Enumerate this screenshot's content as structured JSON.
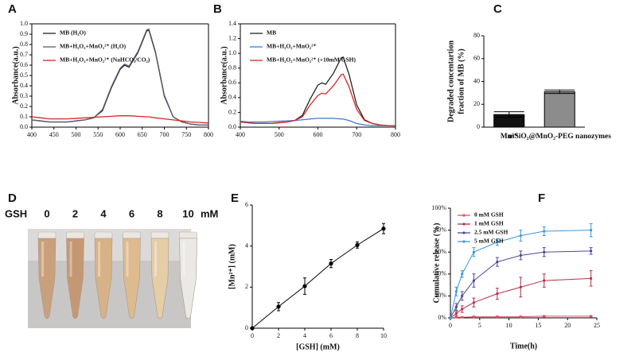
{
  "chart_data": [
    {
      "type": "line",
      "panel": "A",
      "box": true,
      "ylabel": "Absorbance(a.u.)",
      "xlim": [
        400,
        800
      ],
      "xticks": [
        400,
        450,
        500,
        550,
        600,
        650,
        700,
        750,
        800
      ],
      "ylim": [
        0,
        1.0
      ],
      "yticks": [
        {
          "value": 0,
          "label": "0.0"
        },
        0.1,
        0.2,
        0.3,
        0.4,
        0.5,
        0.6,
        0.7,
        0.8,
        0.9,
        {
          "value": 1.0,
          "label": "1.0"
        }
      ],
      "legend": "upper left",
      "x": [
        400,
        420,
        440,
        460,
        480,
        500,
        520,
        540,
        560,
        580,
        600,
        610,
        620,
        640,
        660,
        665,
        680,
        700,
        720,
        740,
        760,
        780,
        800
      ],
      "series": [
        {
          "name": "MB (H₂O)",
          "color": "#222222",
          "values": [
            0.07,
            0.06,
            0.05,
            0.05,
            0.05,
            0.06,
            0.07,
            0.09,
            0.16,
            0.38,
            0.56,
            0.6,
            0.58,
            0.72,
            0.93,
            0.94,
            0.72,
            0.3,
            0.1,
            0.05,
            0.03,
            0.02,
            0.02
          ]
        },
        {
          "name": "MB+H₂O₂+MnO₂²⁺ (H₂O)",
          "color": "#5e5a72",
          "values": [
            0.07,
            0.06,
            0.05,
            0.05,
            0.05,
            0.06,
            0.07,
            0.09,
            0.17,
            0.39,
            0.57,
            0.61,
            0.59,
            0.73,
            0.94,
            0.95,
            0.73,
            0.31,
            0.1,
            0.05,
            0.03,
            0.02,
            0.02
          ]
        },
        {
          "name": "MB+H₂O₂+MnO₂²⁺ (NaHCO₃/CO₂)",
          "color": "#d62728",
          "values": [
            0.1,
            0.09,
            0.08,
            0.08,
            0.08,
            0.085,
            0.09,
            0.095,
            0.1,
            0.105,
            0.11,
            0.11,
            0.11,
            0.105,
            0.1,
            0.1,
            0.09,
            0.08,
            0.07,
            0.06,
            0.05,
            0.045,
            0.04
          ]
        }
      ]
    },
    {
      "type": "line",
      "panel": "B",
      "box": true,
      "ylabel": "Absorbance(a.u.)",
      "xlim": [
        400,
        800
      ],
      "xticks": [
        400,
        500,
        600,
        700,
        800
      ],
      "ylim": [
        0,
        1.4
      ],
      "yticks": [
        {
          "value": 0,
          "label": "0.0"
        },
        0.2,
        0.4,
        0.6,
        0.8,
        {
          "value": 1.0,
          "label": "1.0"
        },
        1.2,
        1.4
      ],
      "legend": "upper left",
      "x": [
        400,
        420,
        440,
        460,
        480,
        500,
        520,
        540,
        560,
        580,
        600,
        610,
        620,
        640,
        660,
        665,
        680,
        700,
        720,
        740,
        760,
        780,
        800
      ],
      "series": [
        {
          "name": "MB",
          "color": "#222222",
          "values": [
            0.07,
            0.06,
            0.05,
            0.05,
            0.05,
            0.06,
            0.07,
            0.09,
            0.16,
            0.38,
            0.57,
            0.6,
            0.58,
            0.73,
            0.94,
            0.95,
            0.72,
            0.3,
            0.1,
            0.05,
            0.03,
            0.02,
            0.02
          ]
        },
        {
          "name": "MB+H₂O₂+MnO₂²⁺",
          "color": "#3a7bd5",
          "values": [
            0.08,
            0.07,
            0.07,
            0.07,
            0.075,
            0.08,
            0.085,
            0.09,
            0.1,
            0.11,
            0.12,
            0.12,
            0.12,
            0.12,
            0.11,
            0.11,
            0.09,
            0.05,
            0.03,
            0.02,
            0.02,
            0.02,
            0.02
          ]
        },
        {
          "name": "MB+H₂O₂+MnO₂²⁺ (+10mM GSH)",
          "color": "#d62728",
          "values": [
            0.07,
            0.06,
            0.05,
            0.05,
            0.05,
            0.06,
            0.07,
            0.09,
            0.14,
            0.3,
            0.43,
            0.46,
            0.45,
            0.56,
            0.71,
            0.72,
            0.55,
            0.24,
            0.09,
            0.05,
            0.03,
            0.02,
            0.02
          ]
        }
      ]
    },
    {
      "type": "bar",
      "panel": "C",
      "box": false,
      "ylabel": [
        "Degraded concentartion",
        "fraction of MB (%)"
      ],
      "categories": [
        "Mn²⁺",
        "mSiO₂@MnO₂-PEG nanozymes"
      ],
      "values": [
        11,
        31
      ],
      "errors": [
        2.5,
        1.5
      ],
      "colors": [
        "#111111",
        "#8c8c8c"
      ],
      "ylim": [
        0,
        80
      ],
      "yticks": [
        0,
        20,
        40,
        60,
        80
      ]
    },
    {
      "type": "line",
      "panel": "E",
      "box": false,
      "markers": true,
      "xlabel": "[GSH] (mM)",
      "ylabel": "[Mn²⁺] (mM)",
      "xlim": [
        0,
        10
      ],
      "xticks": [
        0,
        2,
        4,
        6,
        8,
        10
      ],
      "ylim": [
        0,
        6
      ],
      "yticks": [
        0,
        2,
        4,
        6
      ],
      "x": [
        0,
        2,
        4,
        6,
        8,
        10
      ],
      "series": [
        {
          "color": "#000000",
          "values": [
            0,
            1.05,
            2.05,
            3.15,
            4.05,
            4.85
          ],
          "errors": [
            0,
            0.2,
            0.4,
            0.2,
            0.15,
            0.25
          ]
        }
      ]
    },
    {
      "type": "line",
      "panel": "F",
      "box": false,
      "markers": true,
      "xlabel": "Time(h)",
      "ylabel": "Cumulative release (%)",
      "xlim": [
        0,
        25
      ],
      "xticks": [
        0,
        5,
        10,
        15,
        20,
        25
      ],
      "ylim": [
        0,
        100
      ],
      "yticks": [
        {
          "value": 0,
          "label": "0%"
        },
        {
          "value": 20,
          "label": "20%"
        },
        {
          "value": 40,
          "label": "40%"
        },
        {
          "value": 60,
          "label": "60%"
        },
        {
          "value": 80,
          "label": "80%"
        },
        {
          "value": 100,
          "label": "100%"
        }
      ],
      "legend": "upper left",
      "x": [
        0,
        1,
        2,
        4,
        8,
        12,
        16,
        24
      ],
      "series": [
        {
          "name": "0 mM GSH",
          "color": "#e0506a",
          "values": [
            0,
            0.5,
            0.5,
            1,
            1,
            1,
            1.5,
            1.5
          ],
          "errors": [
            0.3,
            0.5,
            0.5,
            0.5,
            0.5,
            0.5,
            0.5,
            0.5
          ]
        },
        {
          "name": "1 mM GSH",
          "color": "#b5304a",
          "values": [
            0,
            4,
            8,
            14,
            22,
            28,
            34,
            36
          ],
          "errors": [
            0.5,
            2,
            3,
            4,
            5,
            9,
            6,
            7
          ]
        },
        {
          "name": "2.5 mM GSH",
          "color": "#4a4a9a",
          "values": [
            0,
            10,
            20,
            34,
            51,
            57,
            60,
            61
          ],
          "errors": [
            0.5,
            3,
            4,
            6,
            4,
            4,
            4,
            3
          ]
        },
        {
          "name": "5 mM GSH",
          "color": "#3a9ad9",
          "values": [
            0,
            24,
            40,
            60,
            69,
            75,
            79,
            80
          ],
          "errors": [
            0.5,
            4,
            3,
            4,
            3,
            5,
            4,
            6
          ]
        }
      ]
    }
  ],
  "photo": {
    "panel": "D",
    "label": "GSH",
    "unit": "mM",
    "concentrations": [
      0,
      2,
      4,
      6,
      8,
      10
    ],
    "tube_colors": [
      "#c9a07c",
      "#c59874",
      "#d8b287",
      "#ddbb8f",
      "#e5cda6",
      "#ebe9e6"
    ]
  }
}
